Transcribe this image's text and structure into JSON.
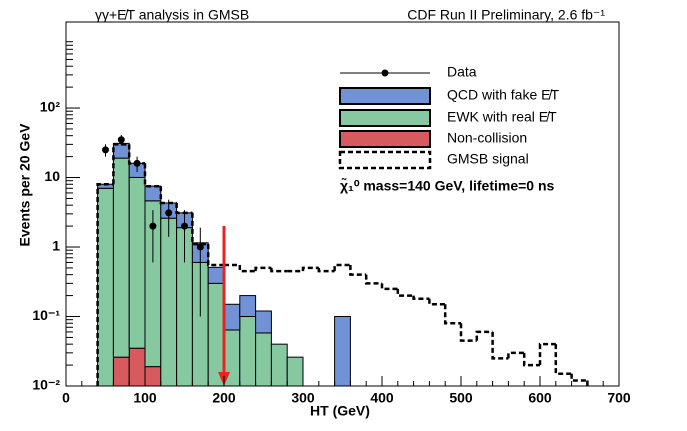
{
  "chart_data": {
    "type": "histogram",
    "log_y": true,
    "left_title": "γγ+E̸T analysis in GMSB",
    "right_title": "CDF Run II Preliminary, 2.6 fb⁻¹",
    "x_label": "HT (GeV)",
    "y_label": "Events per 20 GeV",
    "annotation": "χ̃₁⁰ mass=140 GeV, lifetime=0 ns",
    "xlim": [
      0,
      700
    ],
    "xticks": [
      0,
      100,
      200,
      300,
      400,
      500,
      600,
      700
    ],
    "ylim": [
      0.01,
      1730
    ],
    "yticks": [
      {
        "value": 0.01,
        "label": "10⁻²"
      },
      {
        "value": 0.1,
        "label": "10⁻¹"
      },
      1,
      10,
      {
        "value": 100,
        "label": "10²"
      }
    ],
    "bins": [
      40,
      60,
      80,
      100,
      120,
      140,
      160,
      180,
      200,
      220,
      240,
      260,
      280,
      300,
      320,
      340,
      360
    ],
    "series": [
      {
        "name": "Non-collision",
        "color": "#d65a5e",
        "values": [
          0,
          0.026,
          0.035,
          0.019,
          0,
          0,
          0,
          0,
          0,
          0,
          0,
          0,
          0,
          0,
          0,
          0
        ]
      },
      {
        "name": "EWK with real E̸T",
        "color": "#86c9a1",
        "values": [
          7,
          19,
          10,
          4.6,
          2.6,
          1.9,
          0.6,
          0.3,
          0.064,
          0.1,
          0.058,
          0.04,
          0.026,
          0,
          0,
          0
        ]
      },
      {
        "name": "QCD with fake E̸T",
        "color": "#7292d6",
        "values": [
          1,
          12,
          6,
          2.9,
          1.7,
          1.2,
          0.55,
          0.21,
          0.086,
          0.1,
          0.062,
          0,
          0,
          0,
          0,
          0.1
        ]
      }
    ],
    "signal": {
      "name": "GMSB signal",
      "bins": [
        40,
        60,
        80,
        100,
        120,
        140,
        160,
        180,
        200,
        220,
        240,
        260,
        280,
        300,
        320,
        340,
        360,
        380,
        400,
        420,
        440,
        460,
        480,
        500,
        520,
        540,
        560,
        580,
        600,
        620,
        640,
        660
      ],
      "values": [
        8,
        30,
        16,
        7.5,
        4.3,
        3.1,
        1.1,
        0.55,
        0.55,
        0.45,
        0.5,
        0.45,
        0.45,
        0.5,
        0.45,
        0.55,
        0.4,
        0.3,
        0.25,
        0.2,
        0.18,
        0.15,
        0.08,
        0.045,
        0.06,
        0.025,
        0.03,
        0.02,
        0.04,
        0.015,
        0.012
      ]
    },
    "data_points": {
      "name": "Data",
      "x": [
        50,
        70,
        90,
        110,
        130,
        150,
        170
      ],
      "values": [
        25,
        35,
        16,
        2,
        3.1,
        2,
        1
      ],
      "errors": [
        5,
        6,
        4,
        1.4,
        1.7,
        1.4,
        0.9
      ]
    },
    "cut_line": 200
  }
}
